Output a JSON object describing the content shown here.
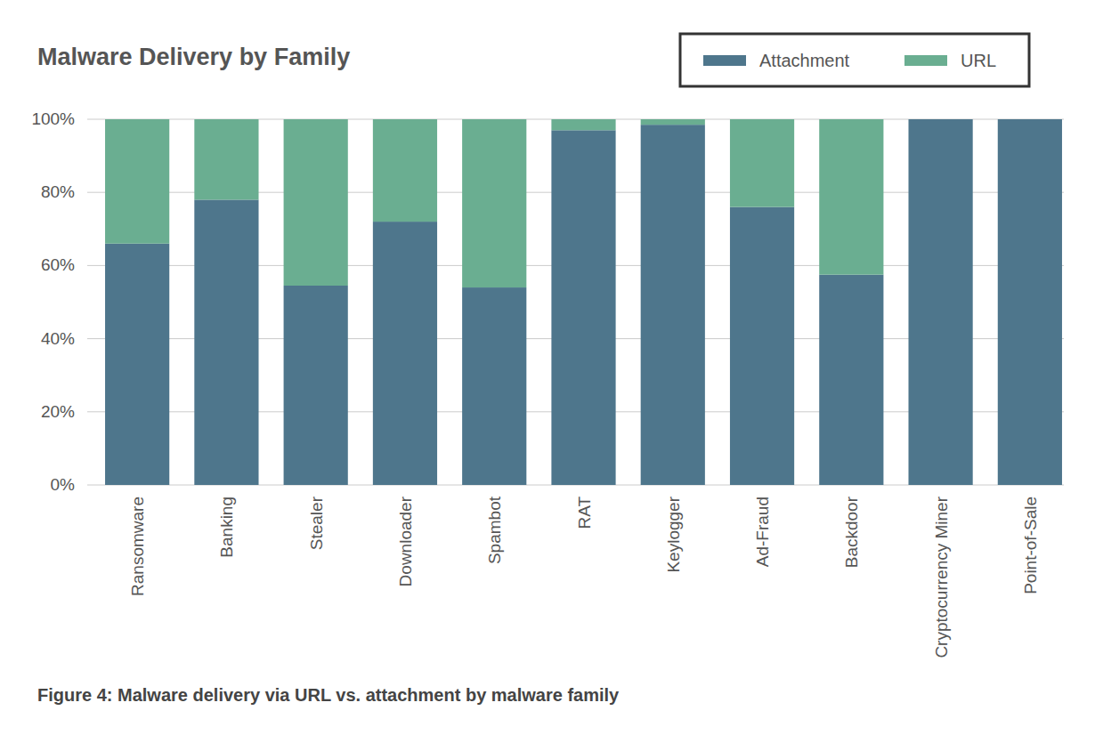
{
  "chart_data": {
    "type": "bar",
    "stacked": true,
    "title": "Malware Delivery by Family",
    "caption": "Figure 4: Malware delivery via URL vs. attachment by malware family",
    "categories": [
      "Ransomware",
      "Banking",
      "Stealer",
      "Downloader",
      "Spambot",
      "RAT",
      "Keylogger",
      "Ad-Fraud",
      "Backdoor",
      "Cryptocurrency Miner",
      "Point-of-Sale"
    ],
    "series": [
      {
        "name": "Attachment",
        "color": "#4e768c",
        "values": [
          66,
          78,
          54.5,
          72,
          54,
          97,
          98.5,
          76,
          57.5,
          100,
          100
        ]
      },
      {
        "name": "URL",
        "color": "#6aae91",
        "values": [
          34,
          22,
          45.5,
          28,
          46,
          3,
          1.5,
          24,
          42.5,
          0,
          0
        ]
      }
    ],
    "ylim": [
      0,
      100
    ],
    "yticks": [
      {
        "value": 0,
        "label": "0%"
      },
      {
        "value": 20,
        "label": "20%"
      },
      {
        "value": 40,
        "label": "40%"
      },
      {
        "value": 60,
        "label": "60%"
      },
      {
        "value": 80,
        "label": "80%"
      },
      {
        "value": 100,
        "label": "100%"
      }
    ],
    "grid": true,
    "legend": "top-right"
  }
}
